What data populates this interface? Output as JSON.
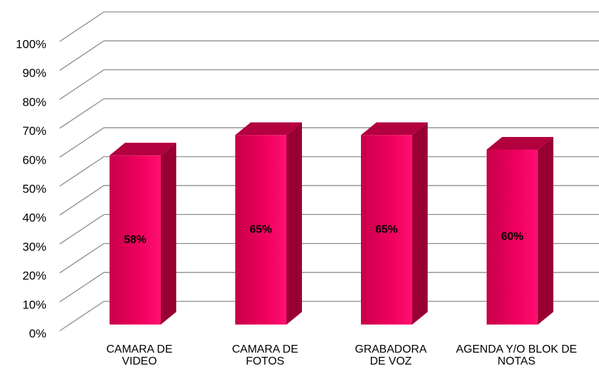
{
  "chart_data": {
    "type": "bar3d",
    "categories": [
      "CAMARA DE VIDEO",
      "CAMARA DE FOTOS",
      "GRABADORA DE VOZ",
      "AGENDA Y/O BLOK DE NOTAS"
    ],
    "values": [
      58,
      65,
      65,
      60
    ],
    "value_labels": [
      "58%",
      "65%",
      "65%",
      "60%"
    ],
    "color": "#e8005a",
    "ylim": [
      0,
      100
    ],
    "yticks": [
      {
        "value": 0,
        "label": "0%"
      },
      {
        "value": 10,
        "label": "10%"
      },
      {
        "value": 20,
        "label": "20%"
      },
      {
        "value": 30,
        "label": "30%"
      },
      {
        "value": 40,
        "label": "40%"
      },
      {
        "value": 50,
        "label": "50%"
      },
      {
        "value": 60,
        "label": "60%"
      },
      {
        "value": 70,
        "label": "70%"
      },
      {
        "value": 80,
        "label": "80%"
      },
      {
        "value": 90,
        "label": "90%"
      },
      {
        "value": 100,
        "label": "100%"
      }
    ],
    "grid": true
  }
}
